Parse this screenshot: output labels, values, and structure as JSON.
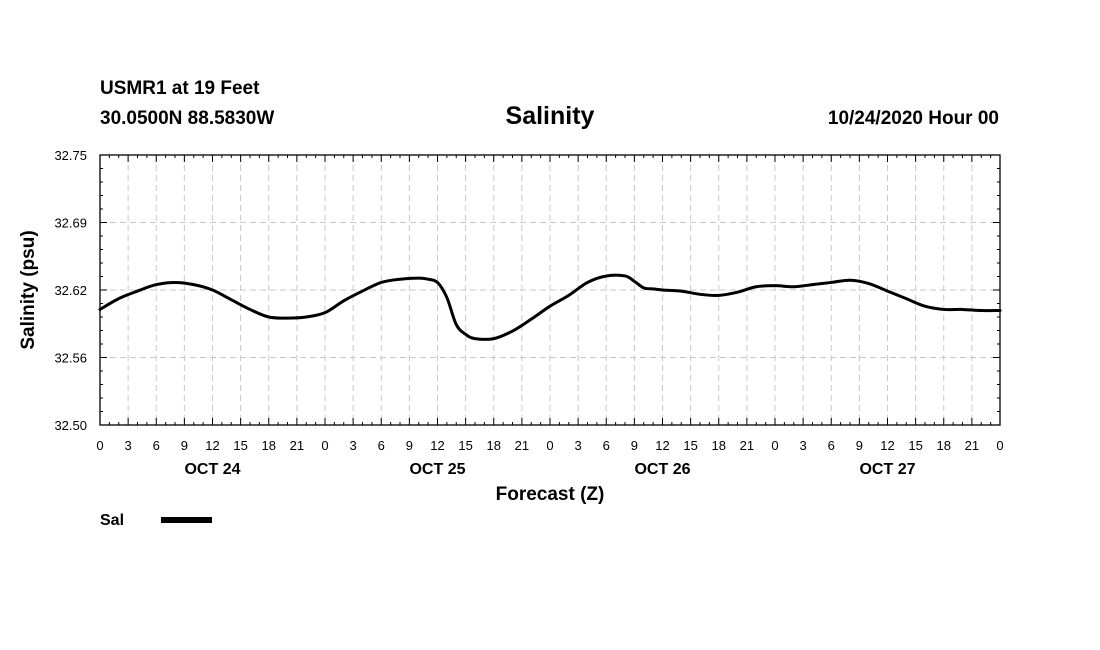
{
  "header": {
    "station": "USMR1 at 19 Feet",
    "coords": "30.0500N 88.5830W",
    "title": "Salinity",
    "run": "10/24/2020 Hour 00"
  },
  "chart_data": {
    "type": "line",
    "title": "Salinity",
    "xlabel": "Forecast (Z)",
    "ylabel": "Salinity (psu)",
    "ylim": [
      32.5,
      32.75
    ],
    "y_ticks": [
      "32.75",
      "32.69",
      "32.62",
      "32.56",
      "32.50"
    ],
    "xlim": [
      0,
      96
    ],
    "x_tick_labels": [
      "0",
      "3",
      "6",
      "9",
      "12",
      "15",
      "18",
      "21",
      "0",
      "3",
      "6",
      "9",
      "12",
      "15",
      "18",
      "21",
      "0",
      "3",
      "6",
      "9",
      "12",
      "15",
      "18",
      "21",
      "0",
      "3",
      "6",
      "9",
      "12",
      "15",
      "18",
      "21",
      "0"
    ],
    "day_labels": [
      {
        "label": "OCT 24",
        "hour": 12
      },
      {
        "label": "OCT 25",
        "hour": 36
      },
      {
        "label": "OCT 26",
        "hour": 60
      },
      {
        "label": "OCT 27",
        "hour": 84
      }
    ],
    "grid": true,
    "legend_position": "bottom-left",
    "series": [
      {
        "name": "Sal",
        "color": "#000000",
        "x": [
          0,
          2,
          4,
          6,
          8,
          10,
          12,
          14,
          16,
          18,
          20,
          22,
          24,
          26,
          28,
          30,
          32,
          34,
          35,
          36,
          37,
          38,
          39,
          40,
          42,
          44,
          46,
          48,
          50,
          52,
          54,
          56,
          57,
          58,
          59,
          60,
          62,
          64,
          66,
          68,
          70,
          72,
          74,
          76,
          78,
          80,
          82,
          84,
          86,
          88,
          90,
          92,
          94,
          96
        ],
        "values": [
          32.607,
          32.617,
          32.624,
          32.63,
          32.632,
          32.63,
          32.625,
          32.616,
          32.607,
          32.6,
          32.599,
          32.6,
          32.604,
          32.615,
          32.624,
          32.632,
          32.635,
          32.636,
          32.635,
          32.632,
          32.618,
          32.593,
          32.584,
          32.58,
          32.58,
          32.587,
          32.598,
          32.61,
          32.62,
          32.632,
          32.638,
          32.638,
          32.633,
          32.627,
          32.626,
          32.625,
          32.624,
          32.621,
          32.62,
          32.623,
          32.628,
          32.629,
          32.628,
          32.63,
          32.632,
          32.634,
          32.631,
          32.624,
          32.617,
          32.61,
          32.607,
          32.607,
          32.606,
          32.606
        ]
      }
    ]
  },
  "legend": {
    "label": "Sal"
  }
}
